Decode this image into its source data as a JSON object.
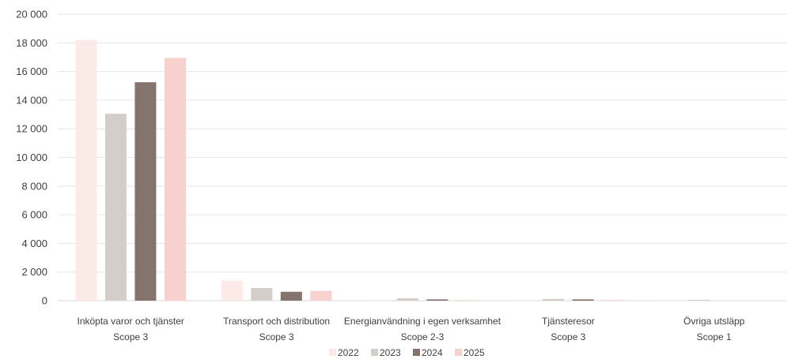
{
  "chart_data": {
    "type": "bar",
    "categories": [
      {
        "name": "Inköpta varor och tjänster",
        "scope": "Scope 3"
      },
      {
        "name": "Transport och distribution",
        "scope": "Scope 3"
      },
      {
        "name": "Energianvändning i egen verksamhet",
        "scope": "Scope 2-3"
      },
      {
        "name": "Tjänsteresor",
        "scope": "Scope 3"
      },
      {
        "name": "Övriga utsläpp",
        "scope": "Scope 1"
      }
    ],
    "series": [
      {
        "name": "2022",
        "color": "#fbeae8",
        "values": [
          18200,
          1400,
          60,
          40,
          20
        ]
      },
      {
        "name": "2023",
        "color": "#d4ceca",
        "values": [
          13050,
          880,
          170,
          120,
          60
        ]
      },
      {
        "name": "2024",
        "color": "#85736d",
        "values": [
          15250,
          620,
          90,
          90,
          0
        ]
      },
      {
        "name": "2025",
        "color": "#f6d1cd",
        "values": [
          16950,
          680,
          40,
          50,
          0
        ]
      }
    ],
    "ylim": [
      0,
      20000
    ],
    "yticks": [
      "0",
      "2 000",
      "4 000",
      "6 000",
      "8 000",
      "10 000",
      "12 000",
      "14 000",
      "16 000",
      "18 000",
      "20 000"
    ],
    "grid": true,
    "legend_position": "bottom"
  }
}
